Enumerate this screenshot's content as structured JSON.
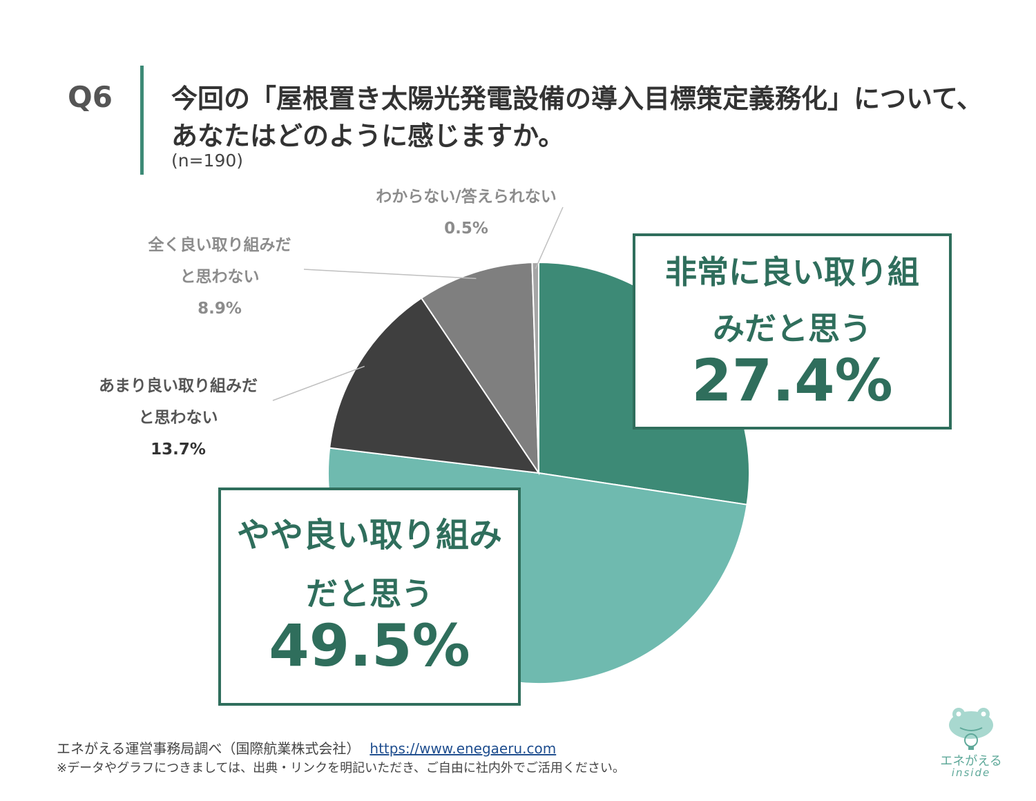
{
  "header": {
    "question_number": "Q6",
    "title_line_1": "今回の「屋根置き太陽光発電設備の導入目標策定義務化」について、",
    "title_line_2": "あなたはどのように感じますか。",
    "sample_size": "(n=190)"
  },
  "chart_data": {
    "type": "pie",
    "start": "top, clockwise",
    "slices": [
      {
        "label": "非常に良い取り組みだと思う",
        "value": 27.4,
        "value_text": "27.4%",
        "color": "#3d8a76",
        "label_lines": [
          "非常に良い取り組",
          "みだと思う"
        ]
      },
      {
        "label": "やや良い取り組みだと思う",
        "value": 49.5,
        "value_text": "49.5%",
        "color": "#6fbaaf",
        "label_lines": [
          "やや良い取り組み",
          "だと思う"
        ]
      },
      {
        "label": "あまり良い取り組みだと思わない",
        "value": 13.7,
        "value_text": "13.7%",
        "color": "#3f3f3f",
        "label_lines": [
          "あまり良い取り組みだ",
          "と思わない"
        ]
      },
      {
        "label": "全く良い取り組みだと思わない",
        "value": 8.9,
        "value_text": "8.9%",
        "color": "#7f7f7f",
        "label_lines": [
          "全く良い取り組みだ",
          "と思わない"
        ]
      },
      {
        "label": "わからない/答えられない",
        "value": 0.5,
        "value_text": "0.5%",
        "color": "#a6a6a6",
        "label_lines": [
          "わからない/答えられない"
        ]
      }
    ],
    "label_colors": {
      "dark": "#333333",
      "mid": "#6b6b6b",
      "light": "#8c8c8c",
      "box": "#2f6e5c"
    }
  },
  "footer": {
    "source": "エネがえる運営事務局調べ（国際航業株式会社）",
    "url": "https://www.enegaeru.com",
    "note": "※データやグラフにつきましては、出典・リンクを明記いただき、ご自由に社内外でご活用ください。"
  },
  "logo": {
    "text": "エネがえる",
    "subtext": "inside",
    "icon": "frog-lightbulb-icon",
    "color": "#5fa99a"
  }
}
